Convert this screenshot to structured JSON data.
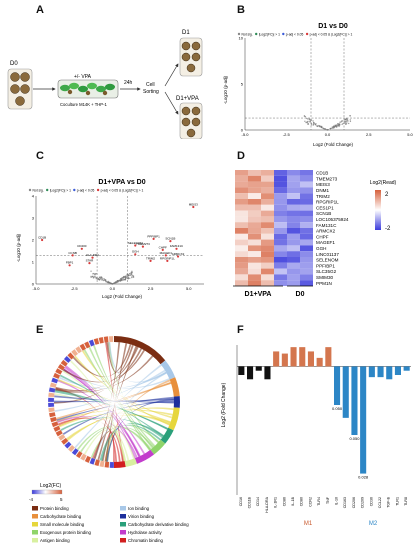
{
  "panels": {
    "A": {
      "label": "A",
      "d0": "D0",
      "vpa": "+/- VPA",
      "coculture": "Coculture M14K + THP-1",
      "time": "24h",
      "sorting_line1": "Cell",
      "sorting_line2": "Sorting",
      "d1": "D1",
      "d1vpa": "D1+VPA"
    },
    "B": {
      "label": "B"
    },
    "C": {
      "label": "C"
    },
    "D": {
      "label": "D",
      "genes": [
        "CD1B",
        "TMEM273",
        "MEIS3",
        "DNM1",
        "TRIM2",
        "RPGRIP1L",
        "CES1P1",
        "SCN1B",
        "LOC105375924",
        "FAM131C",
        "ARMCX2",
        "CHPF",
        "MAGEF1",
        "GGH",
        "LINC01137",
        "SELENOM",
        "PPFIBP1",
        "SLC35G2",
        "SMIM30",
        "PPM1N"
      ],
      "legend_title": "Log2(Read)",
      "legend_max": "2",
      "legend_min": "-2",
      "group_left": "D1+VPA",
      "group_right": "D0"
    },
    "E": {
      "label": "E",
      "legend_title": "Log2(FC)",
      "legend_min": "-4",
      "legend_max": "5",
      "categories": [
        {
          "name": "Protein binding",
          "color": "#7b2d12"
        },
        {
          "name": "Ion binding",
          "color": "#a8c8e8"
        },
        {
          "name": "Carbohydrate binding",
          "color": "#e88f3c"
        },
        {
          "name": "Virion binding",
          "color": "#1c2f9c"
        },
        {
          "name": "Small molecule binding",
          "color": "#e6d63c"
        },
        {
          "name": "Carbohydrate derivative binding",
          "color": "#2aa07a"
        },
        {
          "name": "Exogenous protein binding",
          "color": "#8fd46a"
        },
        {
          "name": "Hydrolase activity",
          "color": "#c23dcc"
        },
        {
          "name": "Antigen binding",
          "color": "#d8f0a0"
        },
        {
          "name": "Chromatin binding",
          "color": "#d21f1f"
        }
      ]
    },
    "F": {
      "label": "F",
      "group_m1": "M1",
      "group_m2": "M2"
    }
  },
  "chart_data": [
    {
      "panel": "B",
      "type": "scatter",
      "title": "D1 vs D0",
      "xlabel": "Log2 (Fold Change)",
      "ylabel": "-Log10 (p-adj)",
      "legend": [
        "Not sig.",
        "|Log2(FC)| > 1",
        "p-adj < 0.05",
        "p-adj < 0.05 & |Log2(FC)| > 1"
      ],
      "legend_colors": [
        "#888888",
        "#2e8b57",
        "#3a5bd9",
        "#d93a3a"
      ],
      "xlim": [
        -5,
        5
      ],
      "ylim": [
        0,
        10
      ],
      "xticks": [
        "-5.0",
        "-2.5",
        "0.0",
        "2.5",
        "5.0"
      ],
      "yticks": [
        "0",
        "5",
        "10"
      ],
      "thresholds": {
        "x": [
          -1,
          1
        ],
        "y": 1.3
      }
    },
    {
      "panel": "C",
      "type": "scatter",
      "title": "D1+VPA vs D0",
      "xlabel": "Log2 (Fold Change)",
      "ylabel": "-Log10 (p-adj)",
      "legend": [
        "Not sig.",
        "|Log2(FC)| > 1",
        "p-adj < 0.05",
        "p-adj < 0.05 & |Log2(FC)| > 1"
      ],
      "legend_colors": [
        "#888888",
        "#2e8b57",
        "#3a5bd9",
        "#d93a3a"
      ],
      "xlim": [
        -5,
        6
      ],
      "ylim": [
        0,
        4
      ],
      "xticks": [
        "-5.0",
        "-2.5",
        "0.0",
        "2.5",
        "5.0"
      ],
      "yticks": [
        "0",
        "1",
        "2",
        "3",
        "4"
      ],
      "thresholds": {
        "x": [
          -1,
          1
        ],
        "y": 1.3
      },
      "labeled_points": [
        {
          "label": "MEIS3",
          "x": 5.3,
          "y": 3.5
        },
        {
          "label": "CD1B",
          "x": -4.6,
          "y": 2.0
        },
        {
          "label": "CD200",
          "x": -2.0,
          "y": 1.6
        },
        {
          "label": "CCNB",
          "x": -2.6,
          "y": 1.3
        },
        {
          "label": "FBP1",
          "x": -2.8,
          "y": 0.85
        },
        {
          "label": "STAR",
          "x": -1.5,
          "y": 0.95
        },
        {
          "label": "HLA-DRA",
          "x": -1.3,
          "y": 1.2
        },
        {
          "label": "SELENOM",
          "x": 1.5,
          "y": 1.75
        },
        {
          "label": "TMEM273",
          "x": 2.0,
          "y": 1.7
        },
        {
          "label": "PPFIBP1",
          "x": 2.7,
          "y": 2.05
        },
        {
          "label": "SCN1B",
          "x": 3.8,
          "y": 1.95
        },
        {
          "label": "CHPF",
          "x": 3.3,
          "y": 1.55
        },
        {
          "label": "FAM131C",
          "x": 4.2,
          "y": 1.6
        },
        {
          "label": "MAGEF1",
          "x": 3.5,
          "y": 1.3
        },
        {
          "label": "ARMCX2",
          "x": 4.3,
          "y": 1.25
        },
        {
          "label": "TRIM2",
          "x": 2.5,
          "y": 1.05
        },
        {
          "label": "RPGRIP1L",
          "x": 3.6,
          "y": 1.05
        },
        {
          "label": "GGH",
          "x": 1.5,
          "y": 1.35
        }
      ]
    },
    {
      "panel": "F",
      "type": "bar",
      "ylabel": "Log2 (Fold Change)",
      "categories": [
        "CD16",
        "CD11B",
        "CD14",
        "HLA-DRA",
        "IL-1R1",
        "CD86",
        "IL-1B",
        "CD80",
        "CCR2",
        "TLR4",
        "TNF",
        "IL-10",
        "CD163",
        "CD206",
        "CD209",
        "CD36",
        "CCL22",
        "TGF-B",
        "TLR1",
        "TLR8"
      ],
      "values": [
        -0.2,
        -0.3,
        -0.1,
        -0.3,
        0.35,
        0.3,
        0.45,
        0.45,
        0.35,
        0.2,
        0.45,
        -0.9,
        -1.2,
        -1.6,
        -2.5,
        -0.25,
        -0.25,
        -0.3,
        -0.2,
        -0.1
      ],
      "colors": [
        "#111111",
        "#111111",
        "#111111",
        "#111111",
        "#d4764e",
        "#d4764e",
        "#d4764e",
        "#d4764e",
        "#d4764e",
        "#d4764e",
        "#d4764e",
        "#2c86c6",
        "#2c86c6",
        "#2c86c6",
        "#2c86c6",
        "#2c86c6",
        "#2c86c6",
        "#2c86c6",
        "#2c86c6",
        "#2c86c6"
      ],
      "annotations": [
        {
          "index": 11,
          "text": "0.050"
        },
        {
          "index": 13,
          "text": "0.050"
        },
        {
          "index": 14,
          "text": "0.028"
        }
      ],
      "ylim": [
        -3,
        0.5
      ]
    }
  ]
}
